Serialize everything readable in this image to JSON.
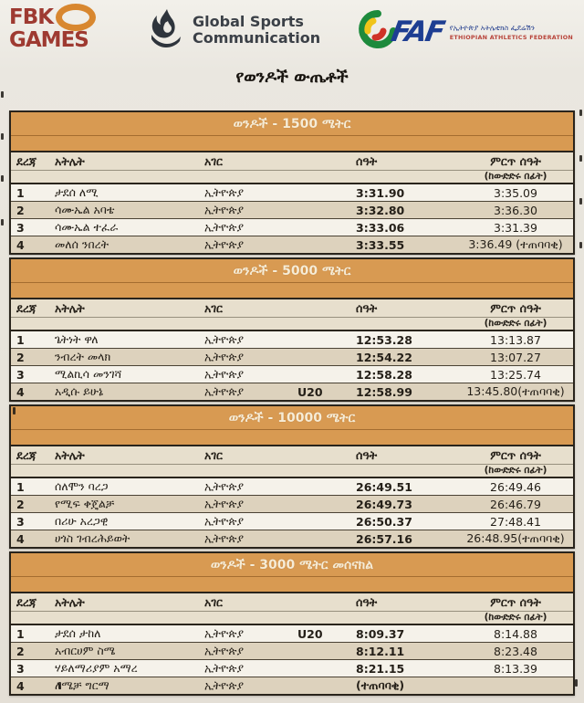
{
  "header": {
    "fbk_logo": {
      "line1": "FBK",
      "line2": "GAMES",
      "oval_icon": "track-oval-icon",
      "color": "#9e3a31",
      "oval_color": "#d8872f"
    },
    "gsc_logo": {
      "icon": "flame-icon",
      "line1": "Global Sports",
      "line2": "Communication",
      "color": "#3b4047"
    },
    "faf_logo": {
      "icon": "swoosh-icon",
      "acronym": "FAF",
      "amharic": "የኢትዮጵያ አትሌቲክስ ፌደሬሽን",
      "english": "ETHIOPIAN ATHLETICS FEDERATION",
      "accent": "#1e3e92"
    }
  },
  "page": {
    "title": "የወንዶች ውጤቶች"
  },
  "columns": {
    "rank": "ደረጃ",
    "athlete": "አትሌት",
    "country": "አገር",
    "time": "ሰዓት",
    "best": "ምርጥ ሰዓት",
    "best_sub": "(ከውድድሩ በፊት)"
  },
  "colors": {
    "band_orange": "#d89a52",
    "row_beige": "#ddd2bd",
    "row_light": "#f5f2ea",
    "header_beige": "#e7dfcd",
    "border_dark": "#29241c"
  },
  "tables": [
    {
      "title": "ወንዶች - 1500 ሜትር",
      "rows": [
        {
          "rank": "1",
          "athlete": "ታደሰ ለሚ",
          "country": "ኢትዮጵያ",
          "u20": "",
          "time": "3:31.90",
          "best": "3:35.09"
        },
        {
          "rank": "2",
          "athlete": "ሳሙኤል አባቴ",
          "country": "ኢትዮጵያ",
          "u20": "",
          "time": "3:32.80",
          "best": "3:36.30"
        },
        {
          "rank": "3",
          "athlete": "ሳሙኤል ተፈራ",
          "country": "ኢትዮጵያ",
          "u20": "",
          "time": "3:33.06",
          "best": "3:31.39"
        },
        {
          "rank": "4",
          "athlete": "መለሰ ንበረት",
          "country": "ኢትዮጵያ",
          "u20": "",
          "time": "3:33.55",
          "best": "3:36.49 (ተጠባባቂ)"
        }
      ]
    },
    {
      "title": "ወንዶች - 5000 ሜትር",
      "rows": [
        {
          "rank": "1",
          "athlete": "ጌትነት ዋለ",
          "country": "ኢትዮጵያ",
          "u20": "",
          "time": "12:53.28",
          "best": "13:13.87"
        },
        {
          "rank": "2",
          "athlete": "ንብረት መላክ",
          "country": "ኢትዮጵያ",
          "u20": "",
          "time": "12:54.22",
          "best": "13:07.27"
        },
        {
          "rank": "3",
          "athlete": "ሚልኪሳ መንገሻ",
          "country": "ኢትዮጵያ",
          "u20": "",
          "time": "12:58.28",
          "best": "13:25.74"
        },
        {
          "rank": "4",
          "athlete": "አዲሱ ይሁኔ",
          "country": "ኢትዮጵያ",
          "u20": "U20",
          "time": "12:58.99",
          "best": "13:45.80(ተጠባባቂ)"
        }
      ]
    },
    {
      "title": "ወንዶች - 10000 ሜትር",
      "rows": [
        {
          "rank": "1",
          "athlete": "ሰለሞን ባረጋ",
          "country": "ኢትዮጵያ",
          "u20": "",
          "time": "26:49.51",
          "best": "26:49.46"
        },
        {
          "rank": "2",
          "athlete": "የሚፍ ቀጄልቻ",
          "country": "ኢትዮጵያ",
          "u20": "",
          "time": "26:49.73",
          "best": "26:46.79"
        },
        {
          "rank": "3",
          "athlete": "በሪሁ አረጋዊ",
          "country": "ኢትዮጵያ",
          "u20": "",
          "time": "26:50.37",
          "best": "27:48.41"
        },
        {
          "rank": "4",
          "athlete": "ሀጎስ ገብረሕይወት",
          "country": "ኢትዮጵያ",
          "u20": "",
          "time": "26:57.16",
          "best": "26:48.95(ተጠባባቂ)"
        }
      ]
    },
    {
      "title": "ወንዶች - 3000 ሜትር መሰናክል",
      "rows": [
        {
          "rank": "1",
          "athlete": "ታደሰ ታከለ",
          "country": "ኢትዮጵያ",
          "u20": "U20",
          "time": "8:09.37",
          "best": "8:14.88"
        },
        {
          "rank": "2",
          "athlete": "አብርሀም ስሜ",
          "country": "ኢትዮጵያ",
          "u20": "",
          "time": "8:12.11",
          "best": "8:23.48"
        },
        {
          "rank": "3",
          "athlete": "ሃይለማሪያም አማረ",
          "country": "ኢትዮጵያ",
          "u20": "",
          "time": "8:21.15",
          "best": "8:13.39"
        },
        {
          "rank": "4",
          "athlete": "ለሜቻ ግርማ",
          "country": "ኢትዮጵያ",
          "u20": "",
          "time": "(ተጠባባቂ)",
          "best": ""
        }
      ]
    }
  ]
}
